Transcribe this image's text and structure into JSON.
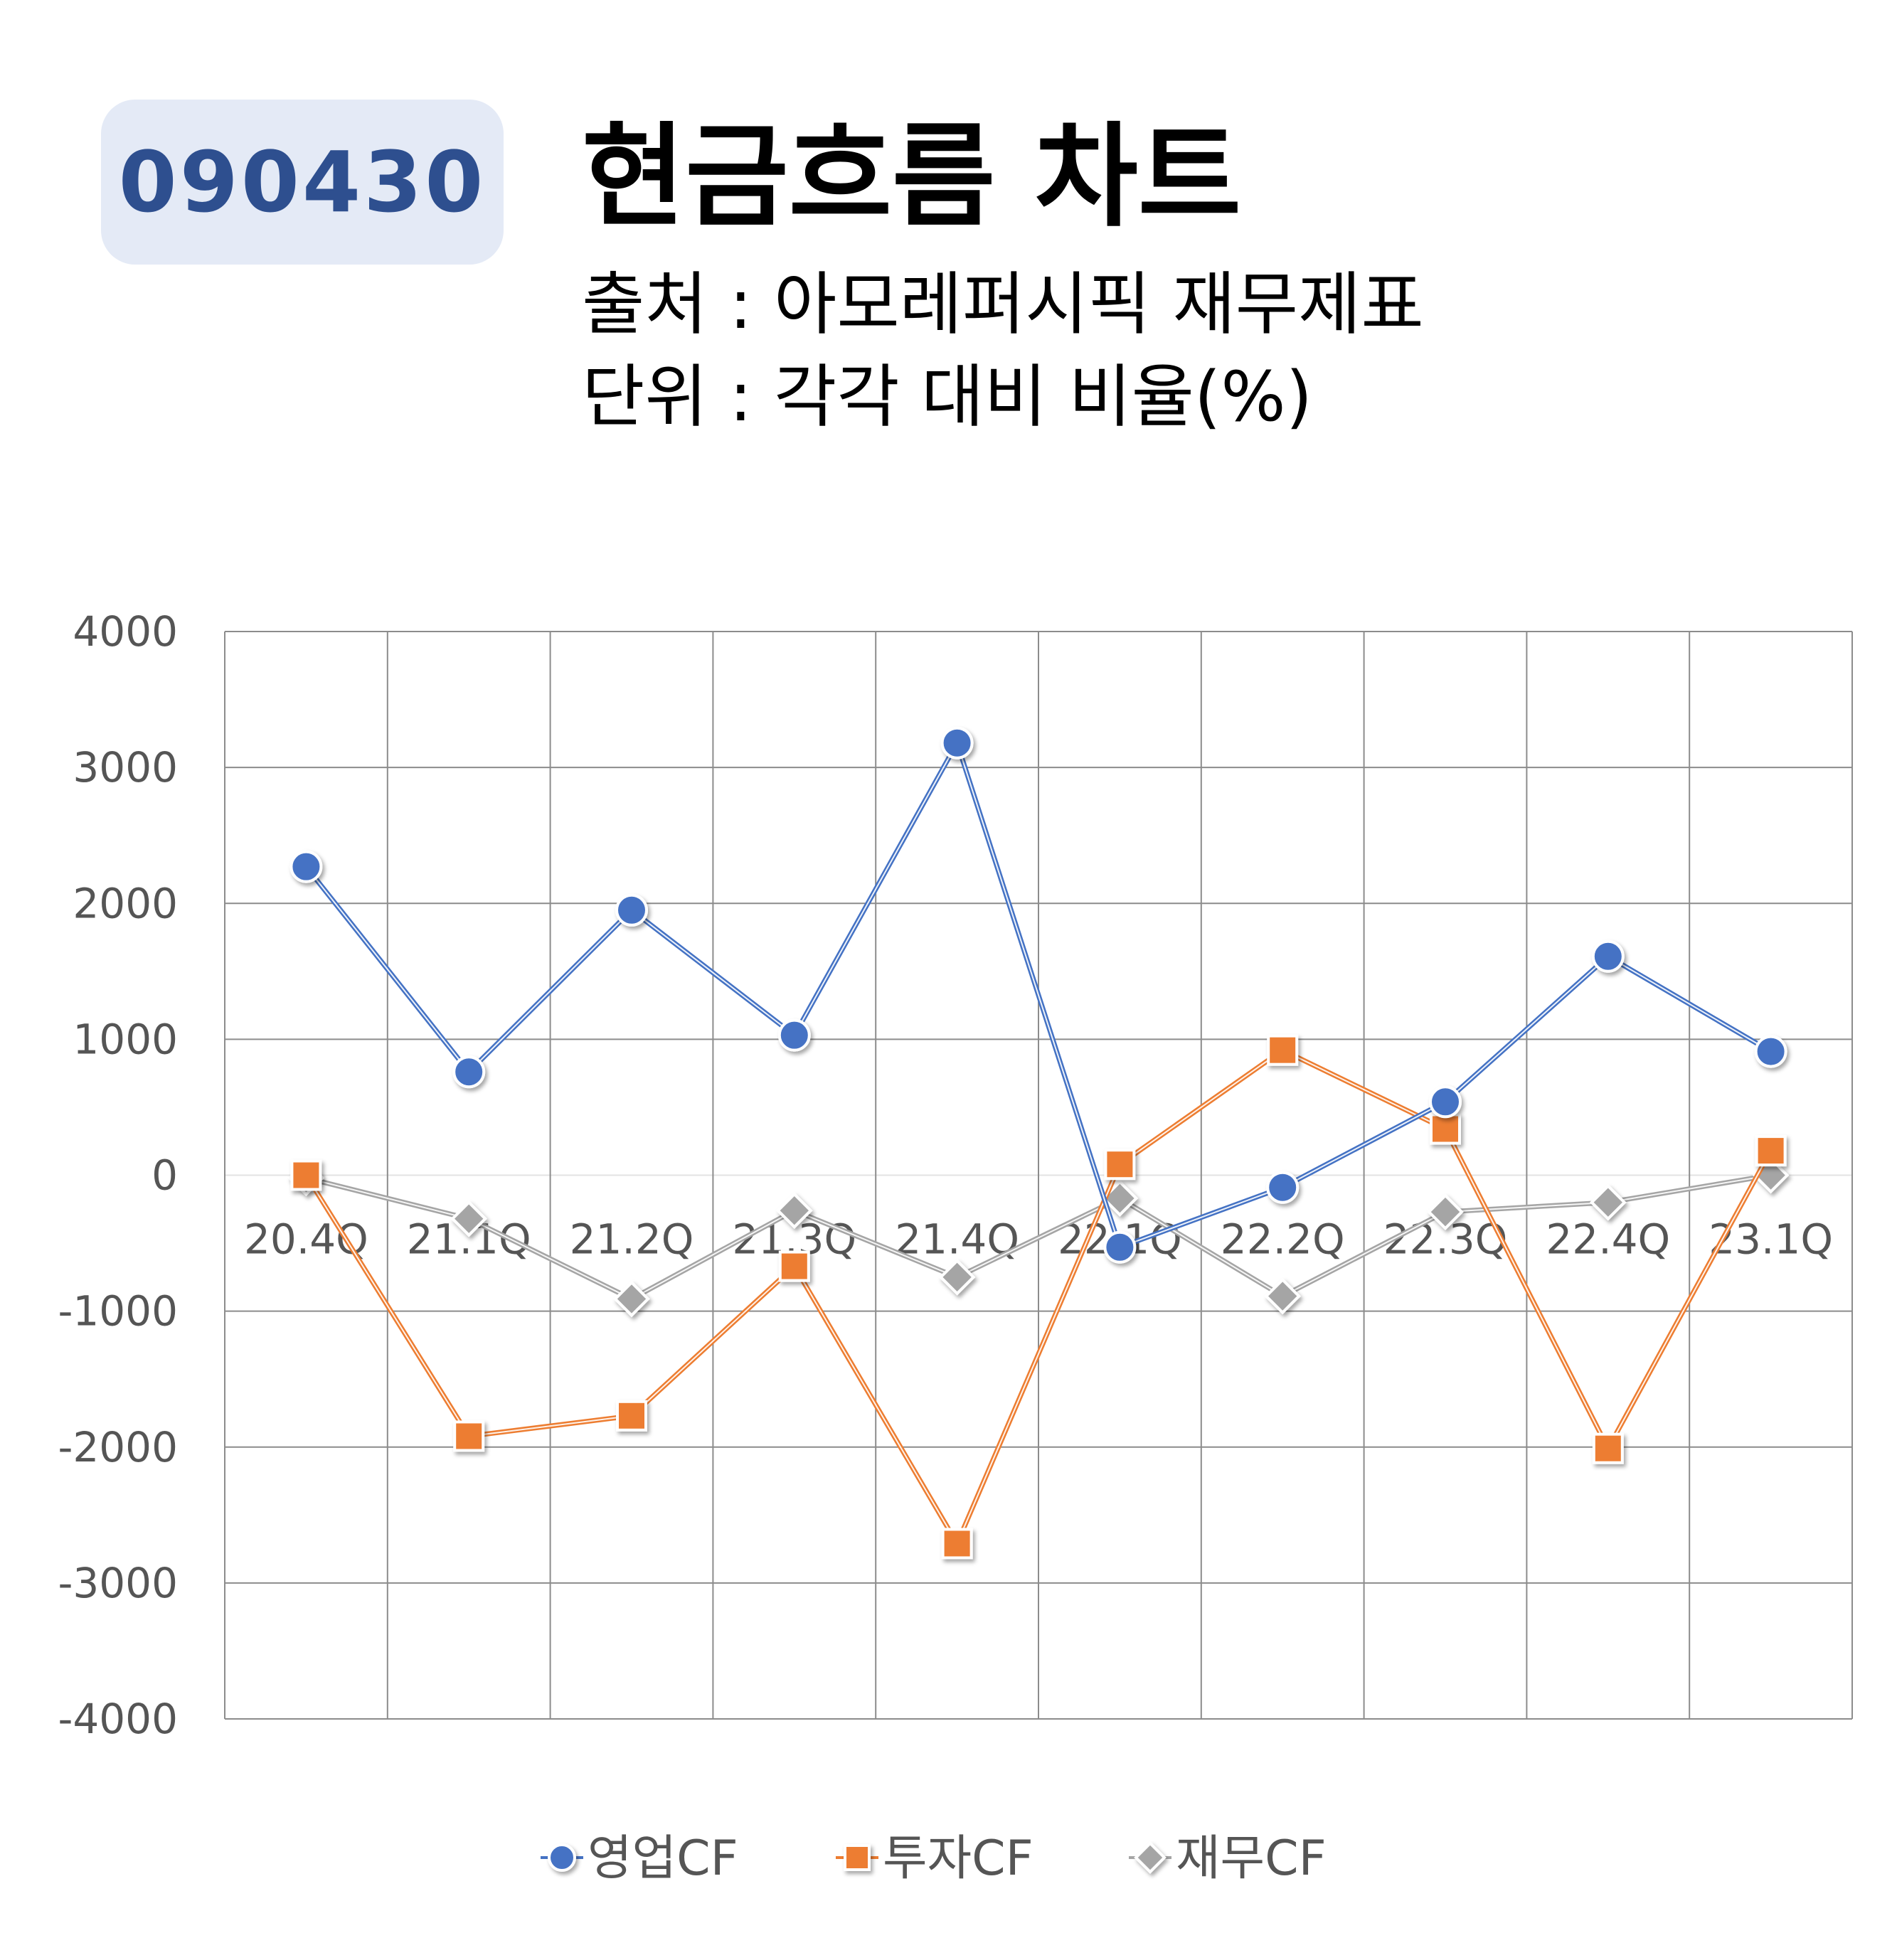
{
  "header": {
    "code": "090430",
    "title": "현금흐름 차트",
    "source": "출처 : 아모레퍼시픽 재무제표",
    "unit": "단위 : 각각 대비 비율(%)"
  },
  "chart_data": {
    "type": "line",
    "categories": [
      "20.4Q",
      "21.1Q",
      "21.2Q",
      "21.3Q",
      "21.4Q",
      "22.1Q",
      "22.2Q",
      "22.3Q",
      "22.4Q",
      "23.1Q"
    ],
    "yticks": [
      "4000",
      "3000",
      "2000",
      "1000",
      "0",
      "-1000",
      "-2000",
      "-3000",
      "-4000"
    ],
    "ylim": [
      -4000,
      4000
    ],
    "grid": true,
    "legend_position": "bottom",
    "series": [
      {
        "name": "영업CF",
        "color": "#4472c4",
        "marker": "circle",
        "values": [
          2270,
          760,
          1950,
          1030,
          3180,
          -530,
          -90,
          540,
          1610,
          910
        ]
      },
      {
        "name": "투자CF",
        "color": "#ed7d31",
        "marker": "square",
        "values": [
          0,
          -1920,
          -1770,
          -670,
          -2710,
          80,
          920,
          340,
          -2010,
          180
        ]
      },
      {
        "name": "재무CF",
        "color": "#a5a5a5",
        "marker": "diamond",
        "values": [
          -20,
          -320,
          -910,
          -260,
          -750,
          -170,
          -890,
          -270,
          -200,
          0
        ]
      }
    ]
  }
}
